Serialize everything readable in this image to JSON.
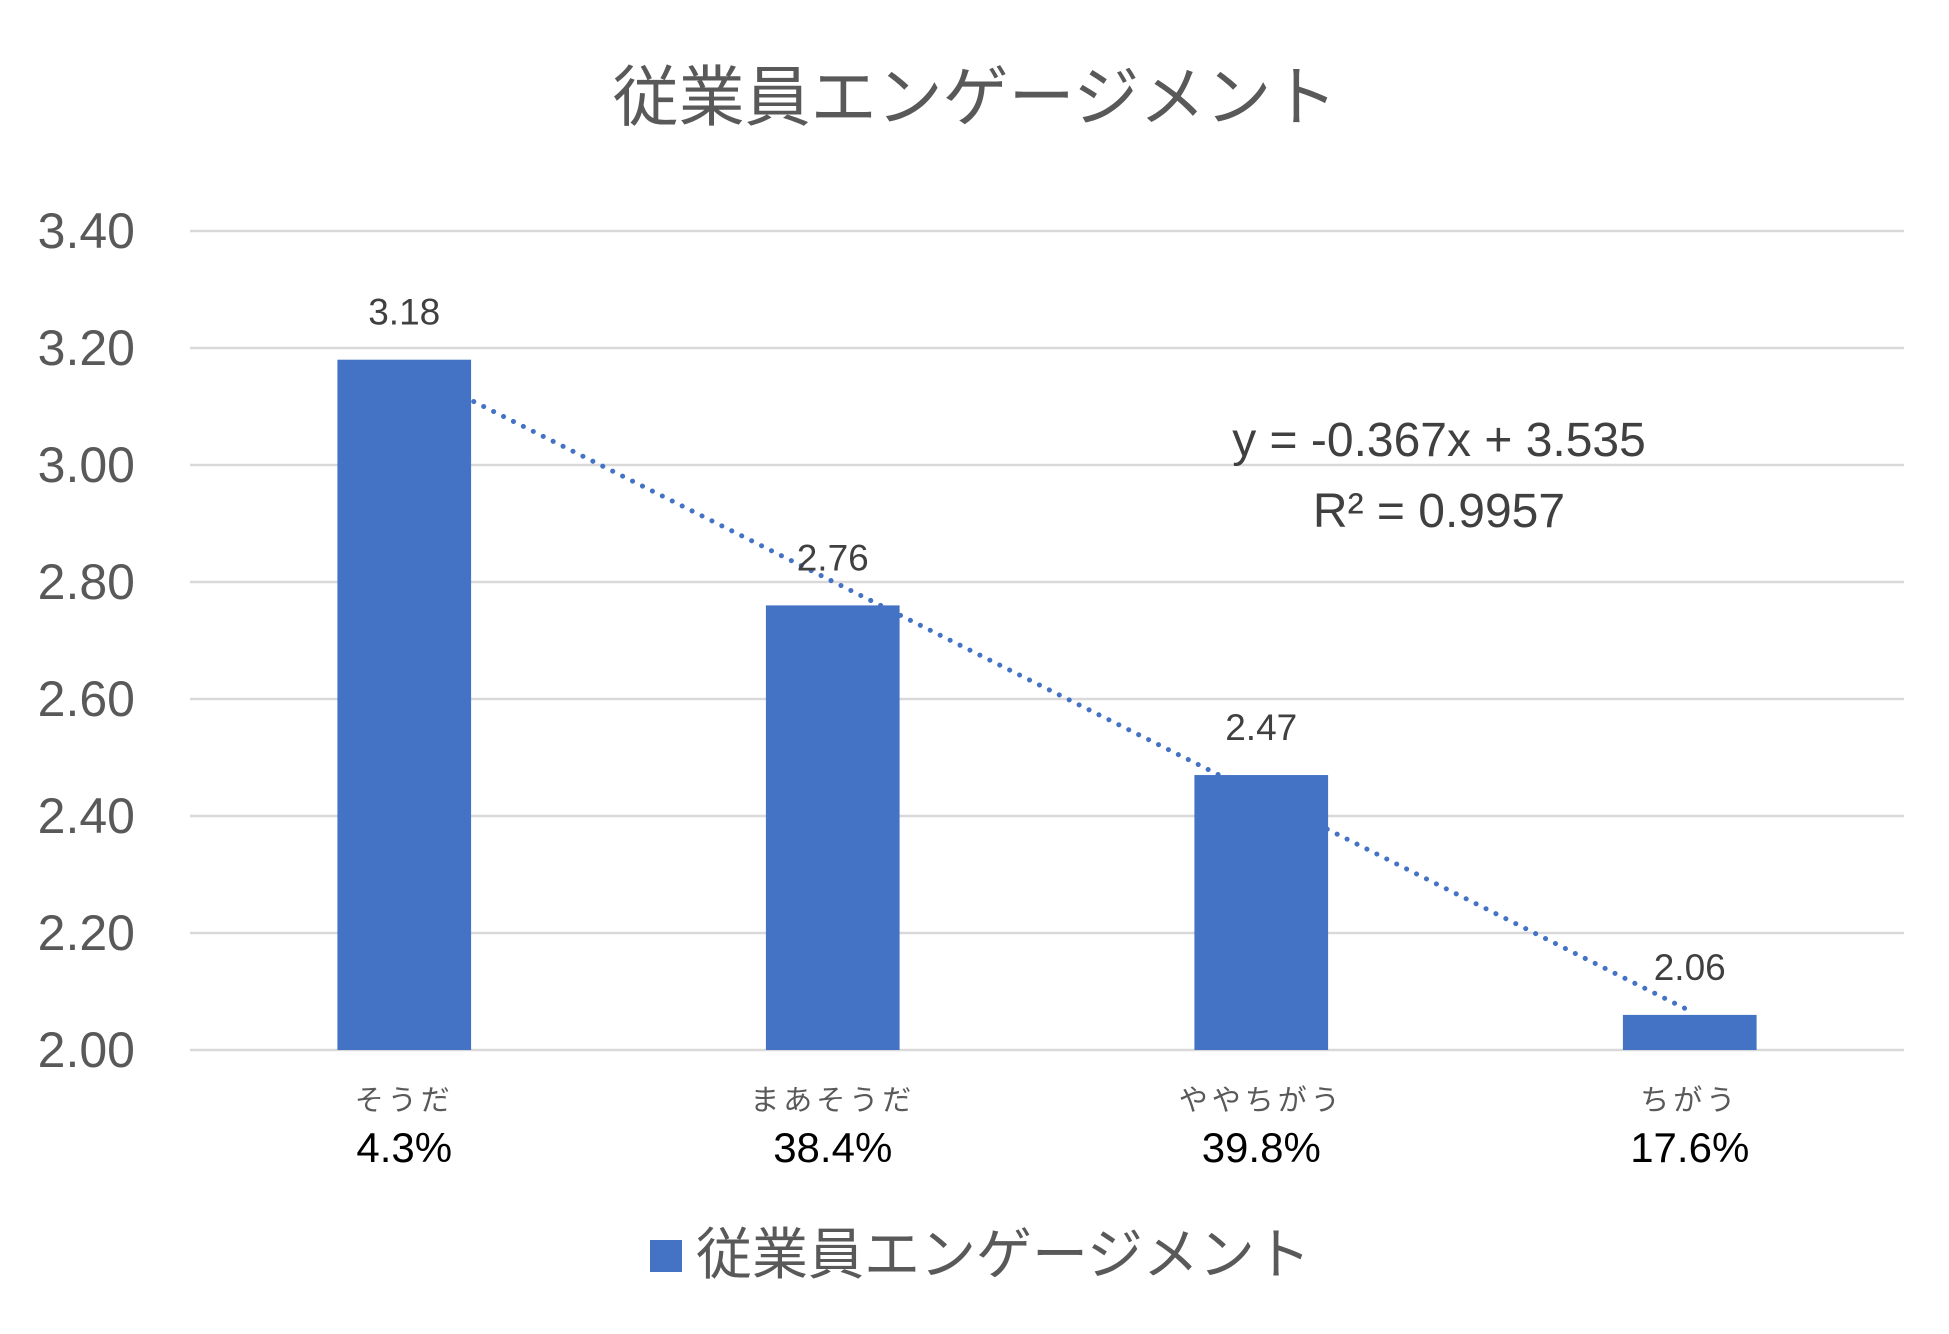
{
  "chart_data": {
    "type": "bar",
    "title": "従業員エンゲージメント",
    "xlabel": "",
    "ylabel": "",
    "categories": [
      "そうだ",
      "まあそうだ",
      "ややちがう",
      "ちがう"
    ],
    "category_sublabels": [
      "4.3%",
      "38.4%",
      "39.8%",
      "17.6%"
    ],
    "series": [
      {
        "name": "従業員エンゲージメント",
        "values": [
          3.18,
          2.76,
          2.47,
          2.06
        ],
        "data_labels": [
          "3.18",
          "2.76",
          "2.47",
          "2.06"
        ],
        "color": "#4472C4"
      }
    ],
    "ylim": [
      2.0,
      3.4
    ],
    "yticks": [
      "2.00",
      "2.20",
      "2.40",
      "2.60",
      "2.80",
      "3.00",
      "3.20",
      "3.40"
    ],
    "grid": true,
    "legend": "bottom",
    "trendline": {
      "slope": -0.367,
      "intercept": 3.535,
      "equation": "y = -0.367x + 3.535",
      "r_squared": "R² = 0.9957",
      "color": "#4472C4"
    }
  }
}
